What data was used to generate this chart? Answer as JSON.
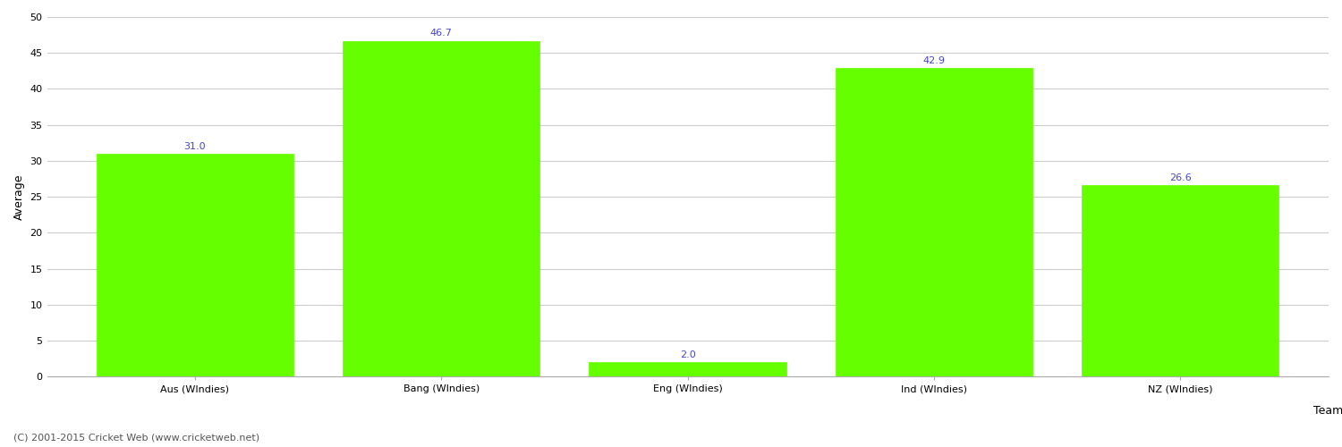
{
  "categories": [
    "Aus (WIndies)",
    "Bang (WIndies)",
    "Eng (WIndies)",
    "Ind (WIndies)",
    "NZ (WIndies)"
  ],
  "values": [
    31.0,
    46.7,
    2.0,
    42.9,
    26.6
  ],
  "bar_color": "#66ff00",
  "bar_edge_color": "#66ff00",
  "label_color": "#4444cc",
  "label_fontsize": 8,
  "xlabel": "Team",
  "ylabel": "Average",
  "ylim": [
    0,
    50
  ],
  "yticks": [
    0,
    5,
    10,
    15,
    20,
    25,
    30,
    35,
    40,
    45,
    50
  ],
  "grid_color": "#cccccc",
  "bg_color": "#ffffff",
  "footer": "(C) 2001-2015 Cricket Web (www.cricketweb.net)",
  "footer_fontsize": 8,
  "axis_label_fontsize": 9,
  "tick_fontsize": 8,
  "bar_width": 0.8
}
